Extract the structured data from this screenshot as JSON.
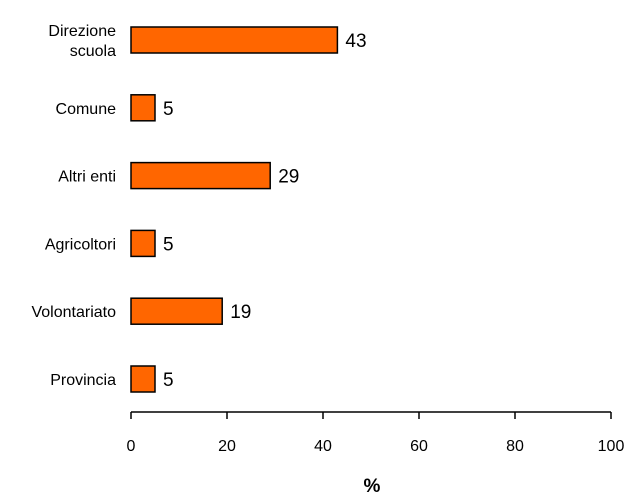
{
  "chart_data": {
    "type": "bar",
    "orientation": "horizontal",
    "categories": [
      [
        "Direzione",
        "scuola"
      ],
      [
        "Comune"
      ],
      [
        "Altri enti"
      ],
      [
        "Agricoltori"
      ],
      [
        "Volontariato"
      ],
      [
        "Provincia"
      ]
    ],
    "values": [
      43,
      5,
      29,
      5,
      19,
      5
    ],
    "data_labels": [
      "43",
      "5",
      "29",
      "5",
      "19",
      "5"
    ],
    "xlabel": "%",
    "xlim": [
      0,
      100
    ],
    "x_ticks": [
      0,
      20,
      40,
      60,
      80,
      100
    ],
    "x_tick_labels": [
      "0",
      "20",
      "40",
      "60",
      "80",
      "100"
    ],
    "grid": false,
    "legend": "none",
    "colors": {
      "bar_fill": "#FF6600",
      "bar_stroke": "#000000",
      "axis": "#000000",
      "text": "#000000"
    }
  }
}
